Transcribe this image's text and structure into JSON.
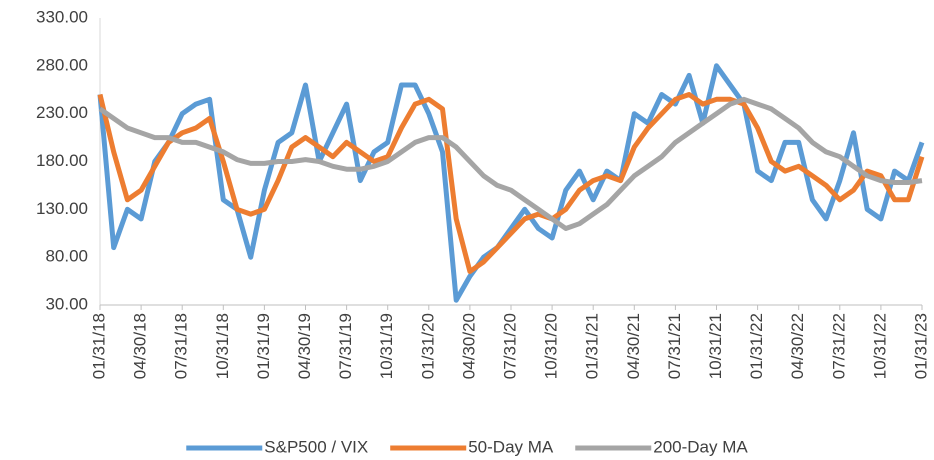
{
  "chart_data": {
    "type": "line",
    "categories": [
      "01/31/18",
      null,
      null,
      "04/30/18",
      null,
      null,
      "07/31/18",
      null,
      null,
      "10/31/18",
      null,
      null,
      "01/31/19",
      null,
      null,
      "04/30/19",
      null,
      null,
      "07/31/19",
      null,
      null,
      "10/31/19",
      null,
      null,
      "01/31/20",
      null,
      null,
      "04/30/20",
      null,
      null,
      "07/31/20",
      null,
      null,
      "10/31/20",
      null,
      null,
      "01/31/21",
      null,
      null,
      "04/30/21",
      null,
      null,
      "07/31/21",
      null,
      null,
      "10/31/21",
      null,
      null,
      "01/31/22",
      null,
      null,
      "04/30/22",
      null,
      null,
      "07/31/22",
      null,
      null,
      "10/31/22",
      null,
      null,
      "01/31/23"
    ],
    "series": [
      {
        "name": "S&P500 / VIX",
        "color": "#5b9bd5",
        "values": [
          250,
          90,
          130,
          120,
          180,
          200,
          230,
          240,
          245,
          140,
          130,
          80,
          150,
          200,
          210,
          260,
          180,
          210,
          240,
          160,
          190,
          200,
          260,
          260,
          230,
          190,
          35,
          60,
          80,
          90,
          110,
          130,
          110,
          100,
          150,
          170,
          140,
          170,
          160,
          230,
          220,
          250,
          240,
          270,
          220,
          280,
          260,
          240,
          170,
          160,
          200,
          200,
          140,
          120,
          160,
          210,
          130,
          120,
          170,
          160,
          200
        ]
      },
      {
        "name": "50-Day MA",
        "color": "#ed7d31",
        "values": [
          250,
          190,
          140,
          150,
          175,
          200,
          210,
          215,
          225,
          180,
          130,
          125,
          130,
          160,
          195,
          205,
          195,
          185,
          200,
          190,
          180,
          185,
          215,
          240,
          245,
          235,
          120,
          65,
          75,
          90,
          105,
          120,
          125,
          120,
          130,
          150,
          160,
          165,
          160,
          195,
          215,
          230,
          245,
          250,
          240,
          245,
          245,
          240,
          215,
          180,
          170,
          175,
          165,
          155,
          140,
          150,
          170,
          165,
          140,
          140,
          185
        ]
      },
      {
        "name": "200-Day MA",
        "color": "#a5a5a5",
        "values": [
          235,
          225,
          215,
          210,
          205,
          205,
          200,
          200,
          195,
          190,
          182,
          178,
          178,
          180,
          180,
          182,
          180,
          175,
          172,
          172,
          175,
          180,
          190,
          200,
          205,
          205,
          195,
          180,
          165,
          155,
          150,
          140,
          130,
          120,
          110,
          115,
          125,
          135,
          150,
          165,
          175,
          185,
          200,
          210,
          220,
          230,
          240,
          245,
          240,
          235,
          225,
          215,
          200,
          190,
          185,
          175,
          165,
          160,
          158,
          158,
          160
        ]
      }
    ],
    "ylim": [
      30,
      330
    ],
    "yticks": [
      {
        "value": 30,
        "label": "30.00"
      },
      {
        "value": 80,
        "label": "80.00"
      },
      {
        "value": 130,
        "label": "130.00"
      },
      {
        "value": 180,
        "label": "180.00"
      },
      {
        "value": 230,
        "label": "230.00"
      },
      {
        "value": 280,
        "label": "280.00"
      },
      {
        "value": 330,
        "label": "330.00"
      }
    ],
    "grid": false,
    "legend": "bottom"
  }
}
